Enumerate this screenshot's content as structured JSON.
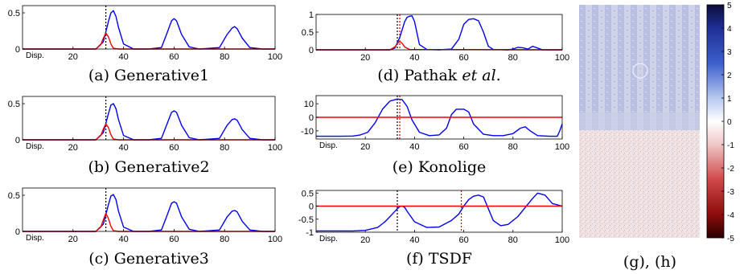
{
  "chart_data": [
    {
      "type": "line",
      "caption": "(a) Generative1",
      "xlabel": "Disp.",
      "xlim": [
        0,
        100
      ],
      "ylim": [
        0,
        0.6
      ],
      "xticks": [
        20,
        40,
        60,
        80,
        100
      ],
      "yticks": [
        0,
        0.5
      ],
      "marker_x": [
        33
      ],
      "series": [
        {
          "color": "#0000ee",
          "x": [
            0,
            29,
            32,
            34,
            35,
            36,
            37,
            38,
            40,
            44,
            50,
            55,
            57,
            59,
            60,
            61,
            63,
            66,
            70,
            78,
            81,
            83,
            84,
            85,
            87,
            90,
            95,
            100
          ],
          "y": [
            0,
            0,
            0.1,
            0.38,
            0.5,
            0.53,
            0.45,
            0.3,
            0.07,
            0,
            0,
            0.02,
            0.2,
            0.39,
            0.42,
            0.39,
            0.2,
            0.03,
            0,
            0.02,
            0.2,
            0.29,
            0.31,
            0.28,
            0.15,
            0.02,
            0,
            0
          ]
        },
        {
          "color": "#ee0000",
          "x": [
            0,
            29,
            31,
            32,
            33,
            34,
            35,
            36,
            38,
            100
          ],
          "y": [
            0,
            0,
            0.06,
            0.15,
            0.22,
            0.17,
            0.07,
            0.01,
            0,
            0
          ]
        }
      ]
    },
    {
      "type": "line",
      "caption": "(b) Generative2",
      "xlabel": "Disp.",
      "xlim": [
        0,
        100
      ],
      "ylim": [
        0,
        0.6
      ],
      "xticks": [
        20,
        40,
        60,
        80,
        100
      ],
      "yticks": [
        0,
        0.5
      ],
      "marker_x": [
        33
      ],
      "series": [
        {
          "color": "#0000ee",
          "x": [
            0,
            29,
            32,
            34,
            35,
            36,
            37,
            38,
            40,
            44,
            50,
            55,
            57,
            59,
            60,
            61,
            63,
            66,
            70,
            78,
            81,
            83,
            84,
            85,
            87,
            90,
            95,
            100
          ],
          "y": [
            0,
            0,
            0.1,
            0.36,
            0.48,
            0.5,
            0.43,
            0.28,
            0.06,
            0,
            0,
            0.02,
            0.2,
            0.38,
            0.4,
            0.38,
            0.2,
            0.03,
            0,
            0.02,
            0.2,
            0.28,
            0.29,
            0.27,
            0.14,
            0.02,
            0,
            0
          ]
        },
        {
          "color": "#ee0000",
          "x": [
            0,
            29,
            31,
            32,
            33,
            34,
            35,
            36,
            38,
            100
          ],
          "y": [
            0,
            0,
            0.06,
            0.15,
            0.22,
            0.17,
            0.07,
            0.01,
            0,
            0
          ]
        }
      ]
    },
    {
      "type": "line",
      "caption": "(c) Generative3",
      "xlabel": "Disp.",
      "xlim": [
        0,
        100
      ],
      "ylim": [
        0,
        0.6
      ],
      "xticks": [
        20,
        40,
        60,
        80,
        100
      ],
      "yticks": [
        0,
        0.5
      ],
      "marker_x": [
        33
      ],
      "series": [
        {
          "color": "#0000ee",
          "x": [
            0,
            29,
            32,
            34,
            35,
            36,
            37,
            38,
            40,
            44,
            50,
            55,
            57,
            59,
            60,
            61,
            63,
            66,
            70,
            78,
            81,
            83,
            84,
            85,
            87,
            90,
            95,
            100
          ],
          "y": [
            0,
            0,
            0.1,
            0.37,
            0.49,
            0.51,
            0.44,
            0.28,
            0.06,
            0,
            0,
            0.02,
            0.2,
            0.39,
            0.41,
            0.39,
            0.2,
            0.03,
            0,
            0.02,
            0.2,
            0.28,
            0.29,
            0.27,
            0.14,
            0.02,
            0,
            0
          ]
        },
        {
          "color": "#ee0000",
          "x": [
            0,
            29,
            31,
            32,
            33,
            34,
            35,
            36,
            38,
            100
          ],
          "y": [
            0,
            0,
            0.06,
            0.16,
            0.25,
            0.18,
            0.07,
            0.01,
            0,
            0
          ]
        }
      ]
    },
    {
      "type": "line",
      "caption": "(d) Pathak et al.",
      "caption_parts": [
        "(d) Pathak ",
        "et al",
        "."
      ],
      "xlabel": "",
      "xlim": [
        0,
        100
      ],
      "ylim": [
        0,
        1
      ],
      "xticks": [
        20,
        40,
        60,
        80,
        100
      ],
      "yticks": [
        0,
        0.5,
        1
      ],
      "marker_x": [
        33,
        34
      ],
      "series": [
        {
          "color": "#0000ee",
          "x": [
            0,
            30,
            32,
            34,
            36,
            37,
            38,
            39,
            40,
            42,
            45,
            50,
            55,
            58,
            60,
            62,
            64,
            66,
            68,
            70,
            72,
            78,
            80,
            82,
            84,
            86,
            88,
            90,
            92,
            100
          ],
          "y": [
            0,
            0,
            0.05,
            0.35,
            0.8,
            0.92,
            0.95,
            0.96,
            0.8,
            0.15,
            0.01,
            0,
            0.02,
            0.3,
            0.72,
            0.86,
            0.88,
            0.82,
            0.5,
            0.1,
            0.01,
            0,
            0.02,
            0.07,
            0.06,
            0.02,
            0.1,
            0.05,
            0,
            0
          ]
        },
        {
          "color": "#ee0000",
          "x": [
            0,
            30,
            32,
            33,
            34,
            35,
            36,
            38,
            100
          ],
          "y": [
            0,
            0,
            0.08,
            0.18,
            0.24,
            0.18,
            0.08,
            0.01,
            0
          ]
        }
      ]
    },
    {
      "type": "line",
      "caption": "(e) Konolige",
      "xlabel": "Disp.",
      "xlim": [
        0,
        100
      ],
      "ylim": [
        -16,
        16
      ],
      "xticks": [
        20,
        40,
        60,
        80,
        100
      ],
      "yticks": [
        -10,
        0,
        10
      ],
      "marker_x": [
        33,
        34
      ],
      "series": [
        {
          "color": "#0000ee",
          "x": [
            0,
            10,
            15,
            18,
            21,
            24,
            27,
            30,
            33,
            35,
            37,
            39,
            42,
            46,
            50,
            53,
            55,
            57,
            60,
            62,
            64,
            68,
            72,
            76,
            80,
            83,
            85,
            87,
            90,
            95,
            98,
            99,
            100
          ],
          "y": [
            -14,
            -14,
            -13.8,
            -13,
            -11,
            -4,
            6,
            12,
            13.5,
            13,
            8,
            -2,
            -11,
            -13.5,
            -13,
            -8,
            2,
            6,
            6,
            4,
            -5,
            -12.5,
            -13.5,
            -13.5,
            -12,
            -8,
            -7,
            -10,
            -13.5,
            -14,
            -14,
            -10,
            -5
          ]
        },
        {
          "color": "#ee0000",
          "x": [
            0,
            100
          ],
          "y": [
            0,
            0
          ]
        }
      ]
    },
    {
      "type": "line",
      "caption": "(f) TSDF",
      "xlabel": "Disp.",
      "xlim": [
        0,
        100
      ],
      "ylim": [
        -1,
        0.6
      ],
      "xticks": [
        20,
        40,
        60,
        80,
        100
      ],
      "yticks": [
        -1,
        -0.5,
        0,
        0.5
      ],
      "marker_x": [
        33,
        59
      ],
      "series": [
        {
          "color": "#0000ee",
          "x": [
            0,
            15,
            20,
            25,
            28,
            31,
            33,
            34,
            35,
            36,
            37,
            40,
            45,
            50,
            55,
            58,
            60,
            62,
            64,
            66,
            68,
            70,
            72,
            75,
            78,
            82,
            85,
            88,
            90,
            93,
            96,
            100
          ],
          "y": [
            -0.95,
            -0.95,
            -0.93,
            -0.82,
            -0.6,
            -0.3,
            -0.1,
            -0.02,
            0,
            -0.05,
            -0.2,
            -0.6,
            -0.82,
            -0.8,
            -0.55,
            -0.3,
            0,
            0.25,
            0.38,
            0.42,
            0.35,
            -0.1,
            -0.55,
            -0.75,
            -0.7,
            -0.4,
            -0.05,
            0.3,
            0.5,
            0.42,
            0.1,
            0
          ]
        },
        {
          "color": "#ee0000",
          "x": [
            0,
            100
          ],
          "y": [
            0,
            0
          ]
        }
      ]
    }
  ],
  "panel_gh": {
    "caption": "(g), (h)",
    "colorbar": {
      "ticks": [
        5,
        4,
        3,
        2,
        1,
        0,
        -1,
        -2,
        -3,
        -4,
        -5
      ],
      "colors_top_to_bottom": [
        "#1b1a66",
        "#2433a8",
        "#4a6fd0",
        "#95b0e4",
        "#dce5f5",
        "#ffffff",
        "#f2d5d5",
        "#e08a8a",
        "#c43030",
        "#8a0b0b",
        "#3a0000"
      ]
    }
  }
}
